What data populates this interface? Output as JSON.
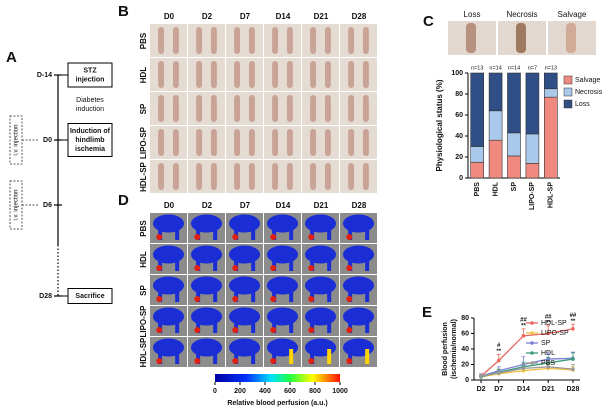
{
  "chart_data": [
    {
      "type": "bar",
      "stacked": true,
      "panel": "C",
      "photo_labels": [
        "Loss",
        "Necrosis",
        "Salvage"
      ],
      "categories": [
        "PBS",
        "HDL",
        "SP",
        "LIPO-SP",
        "HDL-SP"
      ],
      "n_labels": [
        "n=13",
        "n=14",
        "n=14",
        "n=7",
        "n=13"
      ],
      "ylabel": "Physiological status (%)",
      "ylim": [
        0,
        100
      ],
      "yticks": [
        0,
        20,
        40,
        60,
        80,
        100
      ],
      "series": [
        {
          "name": "Salvage",
          "color": "#f08a80",
          "values": [
            15,
            36,
            21,
            14,
            77
          ]
        },
        {
          "name": "Necrosis",
          "color": "#a9c8ea",
          "values": [
            15,
            28,
            22,
            28,
            8
          ]
        },
        {
          "name": "Loss",
          "color": "#2f4f86",
          "values": [
            70,
            36,
            57,
            58,
            15
          ]
        }
      ]
    },
    {
      "type": "line",
      "panel": "E",
      "ylabel": [
        "Blood perfusion",
        "(ischemia/normal)"
      ],
      "x": [
        2,
        7,
        14,
        21,
        28
      ],
      "xlim": [
        0,
        30
      ],
      "xticks": [
        {
          "value": 2,
          "label": "D2"
        },
        {
          "value": 7,
          "label": "D7"
        },
        {
          "value": 14,
          "label": "D14"
        },
        {
          "value": 21,
          "label": "D21"
        },
        {
          "value": 28,
          "label": "D28"
        }
      ],
      "ylim": [
        0,
        80
      ],
      "yticks": [
        0,
        20,
        40,
        60,
        80
      ],
      "series": [
        {
          "name": "HDL-SP",
          "color": "#e8665e",
          "values": [
            5,
            25,
            57,
            60,
            66
          ],
          "errors": [
            3,
            8,
            9,
            10,
            6
          ]
        },
        {
          "name": "LIPO-SP",
          "color": "#f2c144",
          "values": [
            4,
            8,
            12,
            15,
            13
          ],
          "errors": [
            2,
            3,
            4,
            5,
            4
          ]
        },
        {
          "name": "SP",
          "color": "#7d80d6",
          "values": [
            5,
            12,
            20,
            27,
            28
          ],
          "errors": [
            3,
            5,
            10,
            9,
            8
          ]
        },
        {
          "name": "HDL",
          "color": "#3d9a7c",
          "values": [
            4,
            10,
            17,
            22,
            27
          ],
          "errors": [
            2,
            4,
            6,
            7,
            8
          ]
        },
        {
          "name": "PBS",
          "color": "#9a9a9a",
          "values": [
            5,
            9,
            15,
            17,
            14
          ],
          "errors": [
            3,
            4,
            6,
            8,
            6
          ]
        }
      ],
      "annotations": [
        {
          "x": 7,
          "lines": [
            "#",
            "**"
          ]
        },
        {
          "x": 14,
          "lines": [
            "##",
            "**"
          ]
        },
        {
          "x": 21,
          "lines": [
            "##",
            "**"
          ]
        },
        {
          "x": 28,
          "lines": [
            "##",
            "**"
          ]
        }
      ]
    }
  ],
  "timeline": {
    "label": "A",
    "note": [
      "Diabetes",
      "induction"
    ],
    "injection": "i.v. injection",
    "events": [
      {
        "day": "D-14",
        "text": [
          "STZ",
          "injection"
        ]
      },
      {
        "day": "D0",
        "text": [
          "Induction of",
          "hindlimb",
          "ischemia"
        ]
      },
      {
        "day": "D6"
      },
      {
        "day": "D28",
        "text": [
          "Sacrifice"
        ]
      }
    ]
  },
  "photos": {
    "label": "B",
    "columns": [
      "D0",
      "D2",
      "D7",
      "D14",
      "D21",
      "D28"
    ],
    "rows": [
      "PBS",
      "HDL",
      "SP",
      "LIPO-SP",
      "HDL-SP"
    ]
  },
  "perfusion_images": {
    "label": "D",
    "columns": [
      "D0",
      "D2",
      "D7",
      "D14",
      "D21",
      "D28"
    ],
    "rows": [
      "PBS",
      "HDL",
      "SP",
      "LIPO-SP",
      "HDL-SP"
    ],
    "colorbar": {
      "ticks": [
        0,
        200,
        400,
        600,
        800,
        1000
      ],
      "label": "Relative blood perfusion (a.u.)"
    }
  }
}
